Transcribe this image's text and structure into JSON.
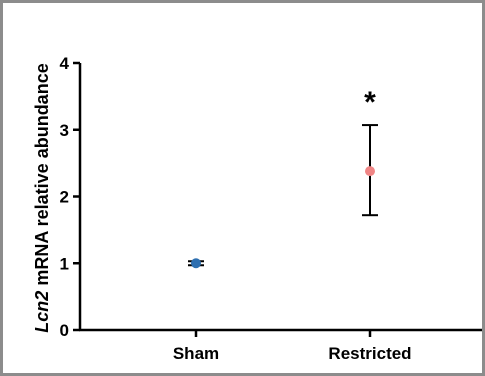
{
  "chart_data": {
    "type": "scatter",
    "title": "",
    "xlabel": "",
    "ylabel_parts": [
      {
        "text": "Lcn2",
        "italic": true
      },
      {
        "text": " mRNA relative abundance",
        "italic": false
      }
    ],
    "ylim": [
      0,
      4
    ],
    "yticks": [
      "0",
      "1",
      "2",
      "3",
      "4"
    ],
    "categories": [
      "Sham",
      "Restricted"
    ],
    "points": [
      {
        "category": "Sham",
        "mean": 1.0,
        "err_low": 0.97,
        "err_high": 1.03,
        "color": "#2e6fb0"
      },
      {
        "category": "Restricted",
        "mean": 2.38,
        "err_low": 1.72,
        "err_high": 3.07,
        "color": "#f08585",
        "annotation": "*"
      }
    ],
    "grid": false
  }
}
